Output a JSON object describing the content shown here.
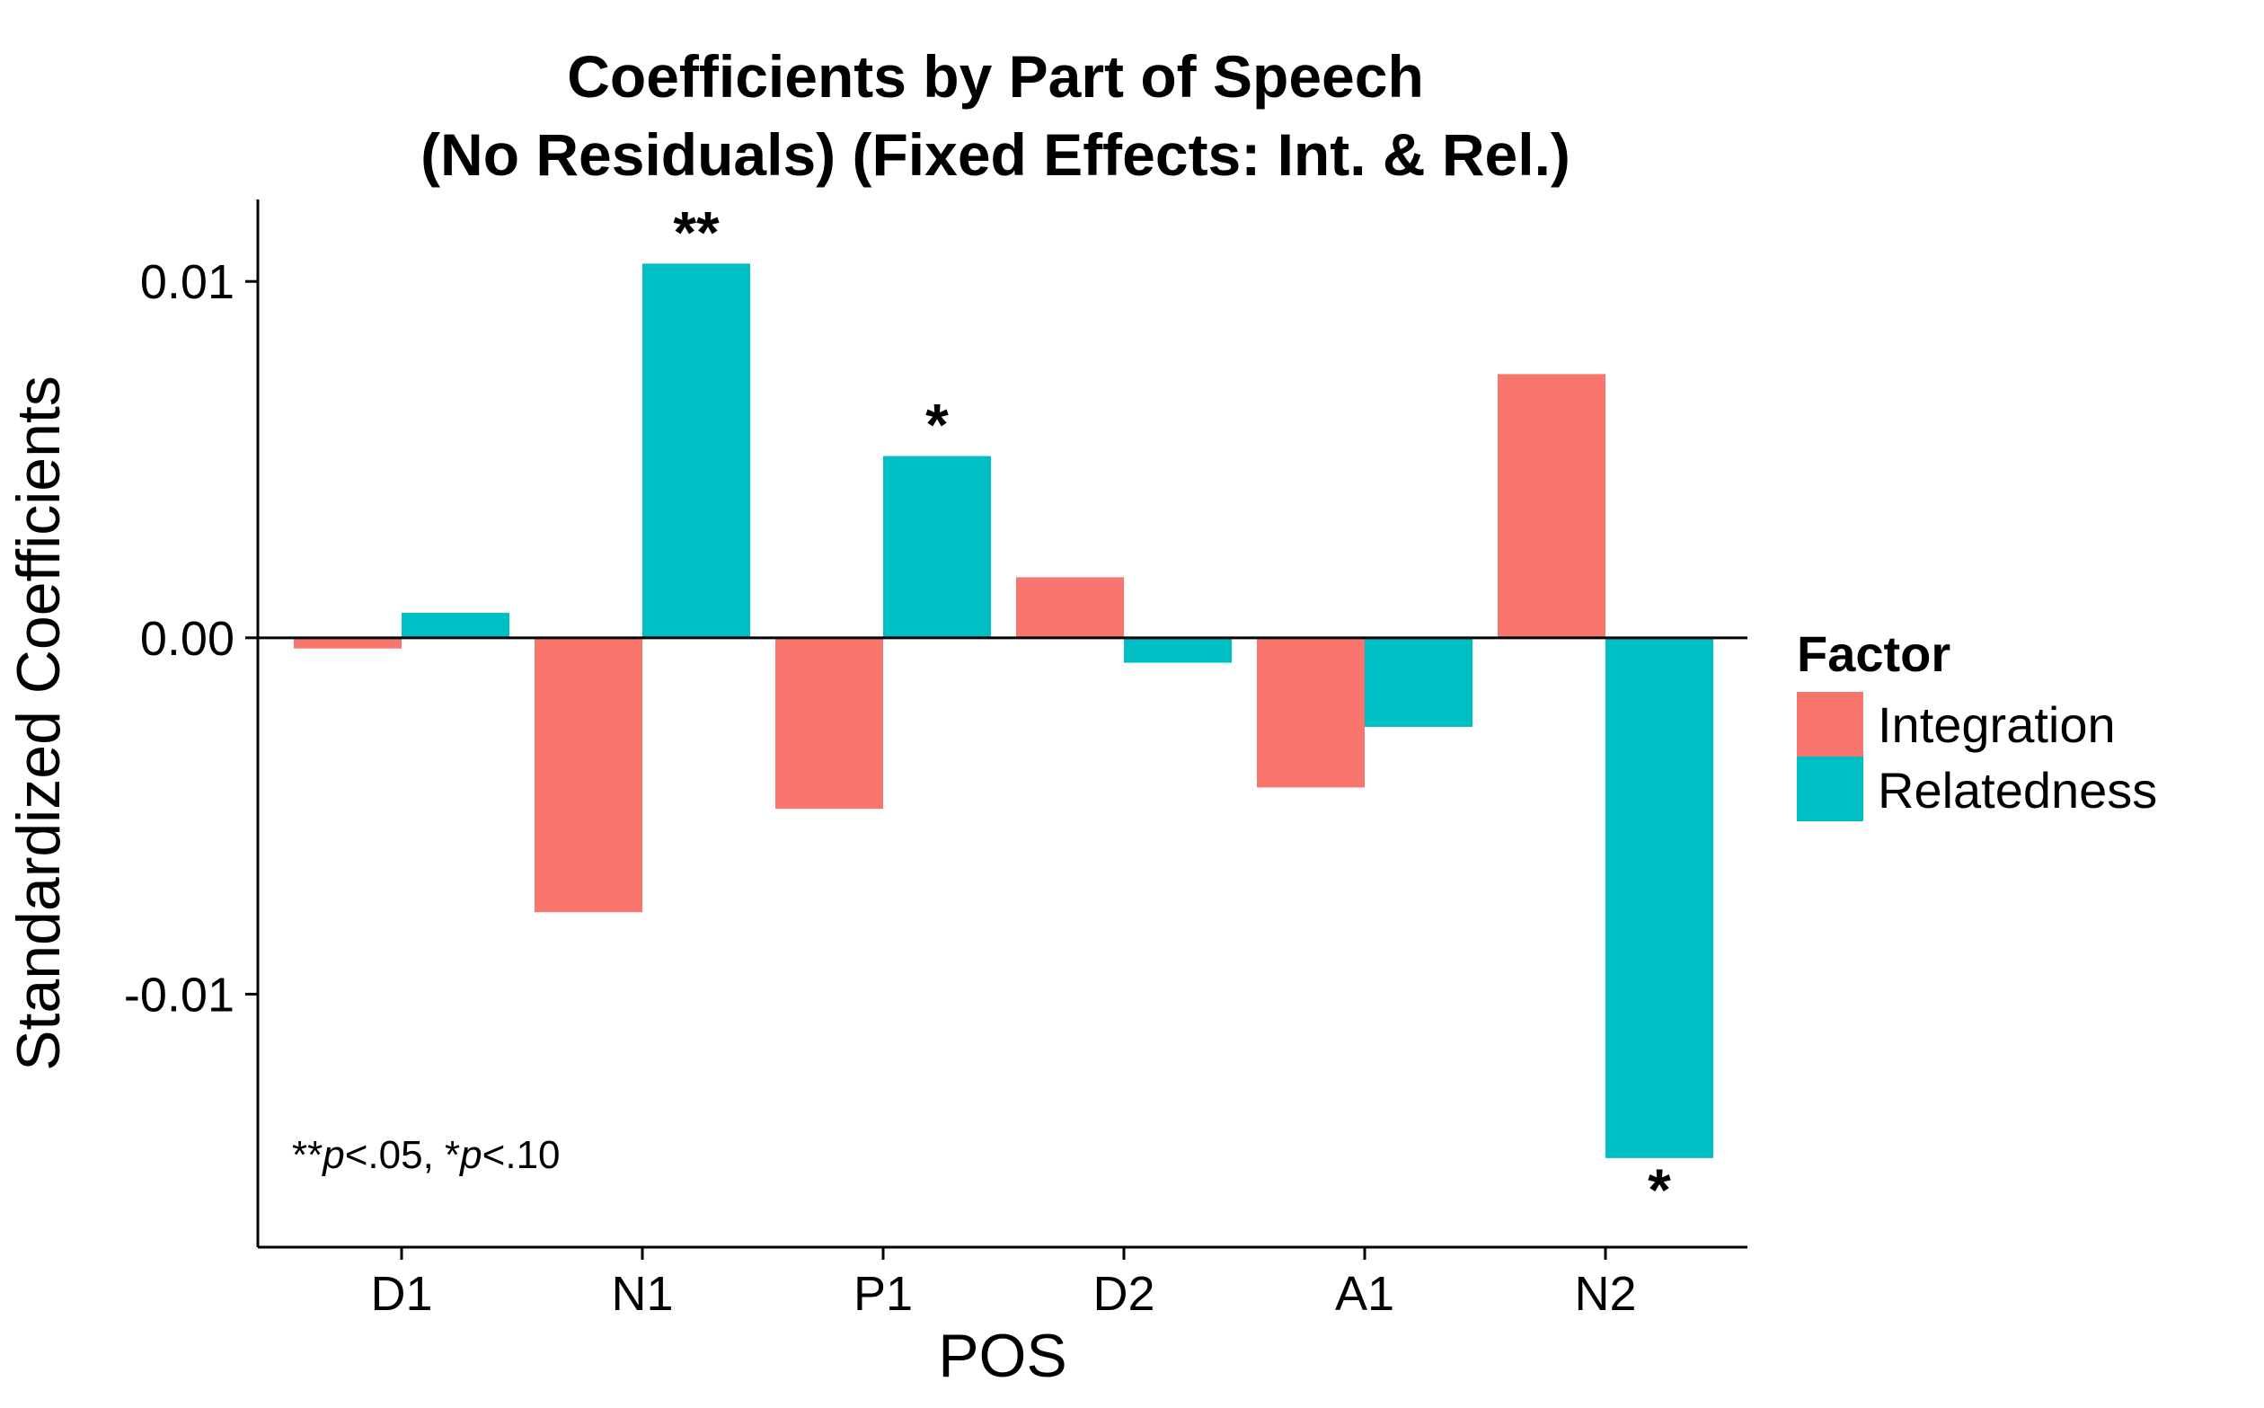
{
  "chart_data": {
    "type": "bar",
    "title": "Coefficients by Part of Speech",
    "subtitle": "(No Residuals) (Fixed Effects: Int. & Rel.)",
    "xlabel": "POS",
    "ylabel": "Standardized Coefficients",
    "categories": [
      "D1",
      "N1",
      "P1",
      "D2",
      "A1",
      "N2"
    ],
    "series": [
      {
        "name": "Integration",
        "color": "#F8766D",
        "values": [
          -0.0003,
          -0.0077,
          -0.0048,
          0.0017,
          -0.0042,
          0.0074
        ],
        "significance": [
          "",
          "",
          "",
          "",
          "",
          ""
        ]
      },
      {
        "name": "Relatedness",
        "color": "#00BFC4",
        "values": [
          0.0007,
          0.0105,
          0.0051,
          -0.0007,
          -0.0025,
          -0.0146
        ],
        "significance": [
          "",
          "**",
          "*",
          "",
          "",
          "*"
        ]
      }
    ],
    "y_ticks": [
      0.01,
      0.0,
      -0.01
    ],
    "y_tick_labels": [
      "0.01",
      "0.00",
      "-0.01"
    ],
    "ylim": [
      -0.0171,
      0.0123
    ],
    "grid": false,
    "zero_line": true,
    "legend": {
      "title": "Factor",
      "position": "right"
    },
    "annotation": {
      "prefix_1": "**",
      "italic_1": "p",
      "text_1": "<.05, ",
      "prefix_2": "*",
      "italic_2": "p",
      "text_2": "<.10"
    }
  }
}
